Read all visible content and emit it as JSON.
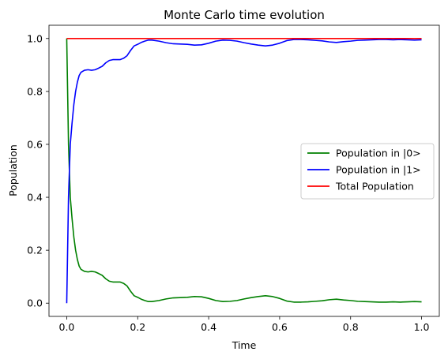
{
  "chart_data": {
    "type": "line",
    "title": "Monte Carlo time evolution",
    "xlabel": "Time",
    "ylabel": "Population",
    "xlim": [
      -0.05,
      1.05
    ],
    "ylim": [
      -0.05,
      1.05
    ],
    "xticks": [
      0.0,
      0.2,
      0.4,
      0.6,
      0.8,
      1.0
    ],
    "xtick_labels": [
      "0.0",
      "0.2",
      "0.4",
      "0.6",
      "0.8",
      "1.0"
    ],
    "yticks": [
      0.0,
      0.2,
      0.4,
      0.6,
      0.8,
      1.0
    ],
    "ytick_labels": [
      "0.0",
      "0.2",
      "0.4",
      "0.6",
      "0.8",
      "1.0"
    ],
    "grid": false,
    "legend_position": "center-right",
    "series": [
      {
        "name": "Population in |0>",
        "color": "#008000",
        "points": [
          [
            0.0,
            1.0
          ],
          [
            0.005,
            0.6
          ],
          [
            0.01,
            0.4
          ],
          [
            0.015,
            0.32
          ],
          [
            0.02,
            0.25
          ],
          [
            0.025,
            0.2
          ],
          [
            0.03,
            0.165
          ],
          [
            0.035,
            0.14
          ],
          [
            0.04,
            0.128
          ],
          [
            0.05,
            0.12
          ],
          [
            0.06,
            0.118
          ],
          [
            0.07,
            0.12
          ],
          [
            0.08,
            0.118
          ],
          [
            0.09,
            0.112
          ],
          [
            0.1,
            0.105
          ],
          [
            0.11,
            0.092
          ],
          [
            0.12,
            0.083
          ],
          [
            0.13,
            0.08
          ],
          [
            0.14,
            0.08
          ],
          [
            0.15,
            0.08
          ],
          [
            0.16,
            0.075
          ],
          [
            0.17,
            0.065
          ],
          [
            0.18,
            0.045
          ],
          [
            0.19,
            0.028
          ],
          [
            0.2,
            0.022
          ],
          [
            0.21,
            0.015
          ],
          [
            0.22,
            0.01
          ],
          [
            0.23,
            0.006
          ],
          [
            0.24,
            0.006
          ],
          [
            0.26,
            0.01
          ],
          [
            0.28,
            0.016
          ],
          [
            0.3,
            0.02
          ],
          [
            0.32,
            0.021
          ],
          [
            0.34,
            0.022
          ],
          [
            0.36,
            0.025
          ],
          [
            0.38,
            0.024
          ],
          [
            0.4,
            0.018
          ],
          [
            0.42,
            0.01
          ],
          [
            0.44,
            0.006
          ],
          [
            0.46,
            0.007
          ],
          [
            0.48,
            0.01
          ],
          [
            0.5,
            0.016
          ],
          [
            0.52,
            0.021
          ],
          [
            0.54,
            0.025
          ],
          [
            0.56,
            0.028
          ],
          [
            0.58,
            0.025
          ],
          [
            0.6,
            0.018
          ],
          [
            0.62,
            0.008
          ],
          [
            0.64,
            0.004
          ],
          [
            0.66,
            0.004
          ],
          [
            0.68,
            0.005
          ],
          [
            0.7,
            0.007
          ],
          [
            0.72,
            0.009
          ],
          [
            0.74,
            0.013
          ],
          [
            0.76,
            0.015
          ],
          [
            0.78,
            0.012
          ],
          [
            0.8,
            0.01
          ],
          [
            0.82,
            0.007
          ],
          [
            0.84,
            0.006
          ],
          [
            0.86,
            0.005
          ],
          [
            0.88,
            0.004
          ],
          [
            0.9,
            0.004
          ],
          [
            0.92,
            0.005
          ],
          [
            0.94,
            0.004
          ],
          [
            0.96,
            0.005
          ],
          [
            0.98,
            0.006
          ],
          [
            1.0,
            0.005
          ]
        ]
      },
      {
        "name": "Population in |1>",
        "color": "#0000ff",
        "points": [
          [
            0.0,
            0.0
          ],
          [
            0.005,
            0.4
          ],
          [
            0.01,
            0.6
          ],
          [
            0.015,
            0.68
          ],
          [
            0.02,
            0.75
          ],
          [
            0.025,
            0.8
          ],
          [
            0.03,
            0.835
          ],
          [
            0.035,
            0.86
          ],
          [
            0.04,
            0.872
          ],
          [
            0.05,
            0.88
          ],
          [
            0.06,
            0.882
          ],
          [
            0.07,
            0.88
          ],
          [
            0.08,
            0.882
          ],
          [
            0.09,
            0.888
          ],
          [
            0.1,
            0.895
          ],
          [
            0.11,
            0.908
          ],
          [
            0.12,
            0.917
          ],
          [
            0.13,
            0.92
          ],
          [
            0.14,
            0.92
          ],
          [
            0.15,
            0.92
          ],
          [
            0.16,
            0.925
          ],
          [
            0.17,
            0.935
          ],
          [
            0.18,
            0.955
          ],
          [
            0.19,
            0.972
          ],
          [
            0.2,
            0.978
          ],
          [
            0.21,
            0.985
          ],
          [
            0.22,
            0.99
          ],
          [
            0.23,
            0.994
          ],
          [
            0.24,
            0.994
          ],
          [
            0.26,
            0.99
          ],
          [
            0.28,
            0.984
          ],
          [
            0.3,
            0.98
          ],
          [
            0.32,
            0.979
          ],
          [
            0.34,
            0.978
          ],
          [
            0.36,
            0.975
          ],
          [
            0.38,
            0.976
          ],
          [
            0.4,
            0.982
          ],
          [
            0.42,
            0.99
          ],
          [
            0.44,
            0.994
          ],
          [
            0.46,
            0.993
          ],
          [
            0.48,
            0.99
          ],
          [
            0.5,
            0.984
          ],
          [
            0.52,
            0.979
          ],
          [
            0.54,
            0.975
          ],
          [
            0.56,
            0.972
          ],
          [
            0.58,
            0.975
          ],
          [
            0.6,
            0.982
          ],
          [
            0.62,
            0.992
          ],
          [
            0.64,
            0.996
          ],
          [
            0.66,
            0.996
          ],
          [
            0.68,
            0.995
          ],
          [
            0.7,
            0.993
          ],
          [
            0.72,
            0.991
          ],
          [
            0.74,
            0.987
          ],
          [
            0.76,
            0.985
          ],
          [
            0.78,
            0.988
          ],
          [
            0.8,
            0.99
          ],
          [
            0.82,
            0.993
          ],
          [
            0.84,
            0.994
          ],
          [
            0.86,
            0.995
          ],
          [
            0.88,
            0.996
          ],
          [
            0.9,
            0.996
          ],
          [
            0.92,
            0.995
          ],
          [
            0.94,
            0.996
          ],
          [
            0.96,
            0.995
          ],
          [
            0.98,
            0.994
          ],
          [
            1.0,
            0.995
          ]
        ]
      },
      {
        "name": "Total Population",
        "color": "#ff0000",
        "points": [
          [
            0.0,
            1.0
          ],
          [
            1.0,
            1.0
          ]
        ]
      }
    ]
  }
}
